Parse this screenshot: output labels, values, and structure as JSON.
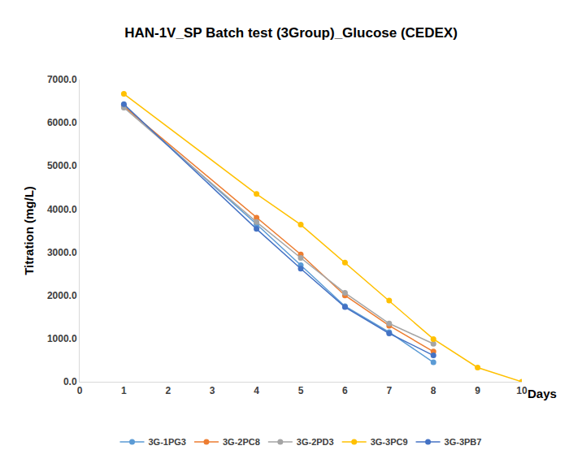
{
  "chart_data": {
    "type": "line",
    "title": "HAN-1V_SP Batch test (3Group)_Glucose (CEDEX)",
    "x_label": "Days",
    "y_label": "Titration (mg/L)",
    "x": [
      1,
      4,
      5,
      6,
      7,
      8,
      9,
      10
    ],
    "series": [
      {
        "name": "3G-1PG3",
        "color": "#5b9bd5",
        "values": [
          6400,
          3650,
          2700,
          1750,
          1150,
          450,
          null,
          null
        ]
      },
      {
        "name": "3G-2PC8",
        "color": "#ed7d31",
        "values": [
          6380,
          3800,
          2950,
          2000,
          1300,
          700,
          null,
          null
        ]
      },
      {
        "name": "3G-2PD3",
        "color": "#a5a5a5",
        "values": [
          6350,
          3700,
          2870,
          2060,
          1350,
          880,
          null,
          null
        ]
      },
      {
        "name": "3G-3PC9",
        "color": "#ffc000",
        "values": [
          6670,
          4350,
          3640,
          2760,
          1880,
          990,
          330,
          0
        ]
      },
      {
        "name": "3G-3PB7",
        "color": "#4472c4",
        "values": [
          6430,
          3540,
          2620,
          1730,
          1120,
          610,
          null,
          null
        ]
      }
    ],
    "xlim": [
      0,
      10
    ],
    "xticks": [
      0,
      1,
      2,
      3,
      4,
      5,
      6,
      7,
      8,
      9,
      10
    ],
    "ylim": [
      0,
      7000
    ],
    "yticks": [
      {
        "value": 0,
        "label": "0.0"
      },
      {
        "value": 1000,
        "label": "1000.0"
      },
      {
        "value": 2000,
        "label": "2000.0"
      },
      {
        "value": 3000,
        "label": "3000.0"
      },
      {
        "value": 4000,
        "label": "4000.0"
      },
      {
        "value": 5000,
        "label": "5000.0"
      },
      {
        "value": 6000,
        "label": "6000.0"
      },
      {
        "value": 7000,
        "label": "7000.0"
      }
    ],
    "grid": false,
    "legend": "bottom",
    "marker": "circle"
  }
}
